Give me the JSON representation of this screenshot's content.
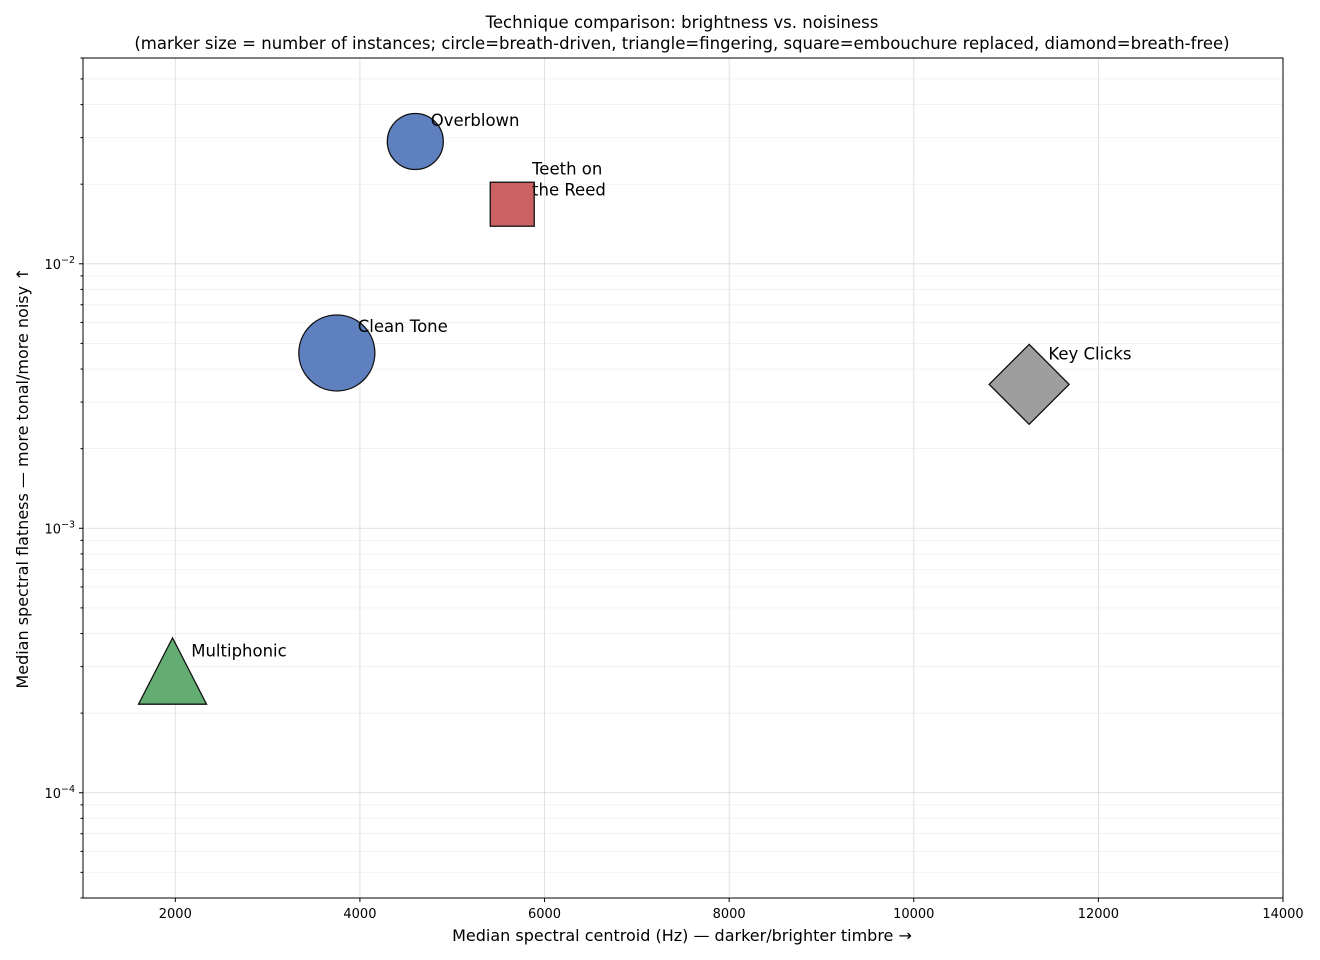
{
  "chart_data": {
    "type": "scatter",
    "title": "Technique comparison: brightness vs. noisiness",
    "subtitle": "(marker size = number of instances; circle=breath-driven, triangle=fingering, square=embouchure replaced, diamond=breath-free)",
    "xlabel": "Median spectral centroid (Hz) — darker/brighter timbre →",
    "ylabel": "Median spectral flatness — more tonal/more noisy ↑",
    "xlim": [
      1000,
      14000
    ],
    "ylim": [
      4e-05,
      0.06
    ],
    "yscale": "log",
    "grid": true,
    "x_ticks": [
      2000,
      4000,
      6000,
      8000,
      10000,
      12000,
      14000
    ],
    "x_tick_labels": [
      "2000",
      "4000",
      "6000",
      "8000",
      "10000",
      "12000",
      "14000"
    ],
    "y_ticks": [
      {
        "value": 0.0001,
        "base": "10",
        "exp": "−4"
      },
      {
        "value": 0.001,
        "base": "10",
        "exp": "−3"
      },
      {
        "value": 0.01,
        "base": "10",
        "exp": "−2"
      }
    ],
    "points": [
      {
        "label": "Clean Tone",
        "label_lines": [
          "Clean Tone"
        ],
        "x": 3750,
        "y": 0.0046,
        "shape": "circle",
        "size": 38,
        "color": "#5f80bf"
      },
      {
        "label": "Overblown",
        "label_lines": [
          "Overblown"
        ],
        "x": 4600,
        "y": 0.029,
        "shape": "circle",
        "size": 28,
        "color": "#5f80bf"
      },
      {
        "label": "Teeth on the Reed",
        "label_lines": [
          "Teeth on",
          "the Reed"
        ],
        "x": 5650,
        "y": 0.0168,
        "shape": "square",
        "size": 22,
        "color": "#cc6164"
      },
      {
        "label": "Multiphonic",
        "label_lines": [
          "Multiphonic"
        ],
        "x": 1970,
        "y": 0.00027,
        "shape": "triangle",
        "size": 34,
        "color": "#63ad72"
      },
      {
        "label": "Key Clicks",
        "label_lines": [
          "Key Clicks"
        ],
        "x": 11250,
        "y": 0.0035,
        "shape": "diamond",
        "size": 40,
        "color": "#9e9e9e"
      }
    ]
  }
}
